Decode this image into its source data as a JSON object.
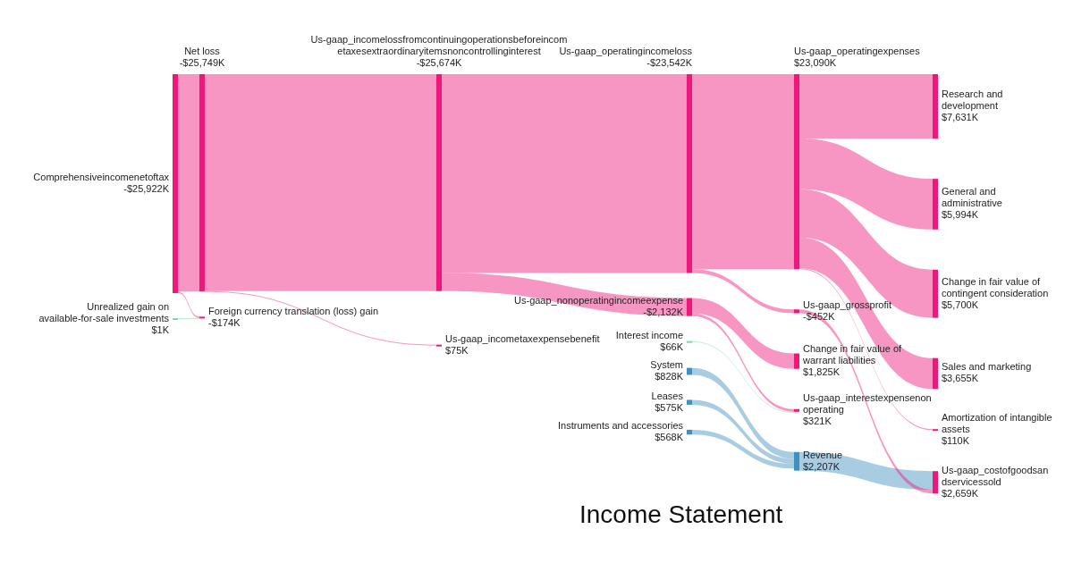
{
  "chart_data": {
    "type": "other",
    "title": "Income Statement",
    "categories": [
      "Comprehensiveincomenetoftax",
      "Unrealized gain on available-for-sale investments",
      "Net loss",
      "Foreign currency translation (loss) gain",
      "Us-gaap_incomelossfromcontinuingoperationsbeforeincometaxesextraordinaryitemsnoncontrollinginterest",
      "Us-gaap_incometaxexpensebenefit",
      "Us-gaap_operatingincomeloss",
      "Us-gaap_nonoperatingincomeexpense",
      "Us-gaap_operatingexpenses",
      "Us-gaap_grossprofit",
      "Change in fair value of warrant liabilities",
      "Us-gaap_interestexpensenonoperating",
      "Interest income",
      "System",
      "Leases",
      "Instruments and accessories",
      "Revenue",
      "Research and development",
      "General and administrative",
      "Change in fair value of contingent consideration",
      "Sales and marketing",
      "Amortization of intangible assets",
      "Us-gaap_costofgoodsandservicessold"
    ],
    "values": [
      -25922,
      1,
      -25749,
      -174,
      -25674,
      75,
      -23542,
      -2132,
      23090,
      -452,
      1825,
      321,
      66,
      828,
      575,
      568,
      2207,
      7631,
      5994,
      5700,
      3655,
      110,
      2659
    ],
    "value_labels": [
      "-$25,922K",
      "$1K",
      "-$25,749K",
      "-$174K",
      "-$25,674K",
      "$75K",
      "-$23,542K",
      "-$2,132K",
      "$23,090K",
      "-$452K",
      "$1,825K",
      "$321K",
      "$66K",
      "$828K",
      "$575K",
      "$568K",
      "$2,207K",
      "$7,631K",
      "$5,994K",
      "$5,700K",
      "$3,655K",
      "$110K",
      "$2,659K"
    ],
    "colors": [
      "#f0177a",
      "#7fd89a",
      "#f0177a",
      "#f0177a",
      "#f0177a",
      "#f0177a",
      "#f0177a",
      "#f0177a",
      "#f0177a",
      "#f0177a",
      "#f0177a",
      "#f0177a",
      "#7fd89a",
      "#3f8fbf",
      "#3f8fbf",
      "#3f8fbf",
      "#3f8fbf",
      "#f0177a",
      "#f0177a",
      "#f0177a",
      "#f0177a",
      "#f0177a",
      "#f0177a"
    ]
  }
}
